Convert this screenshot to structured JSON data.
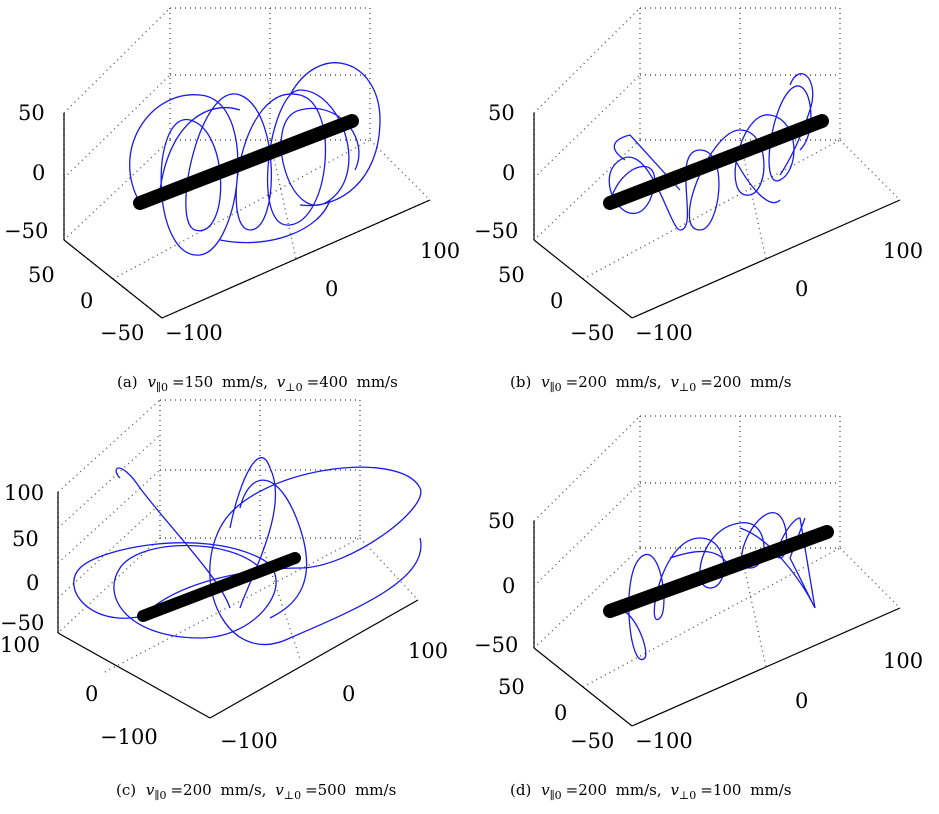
{
  "figure": {
    "panels": [
      {
        "id": "a",
        "caption": {
          "label": "(a)",
          "v_par": "150",
          "v_perp": "400"
        }
      },
      {
        "id": "b",
        "caption": {
          "label": "(b)",
          "v_par": "200",
          "v_perp": "200"
        }
      },
      {
        "id": "c",
        "caption": {
          "label": "(c)",
          "v_par": "200",
          "v_perp": "500"
        }
      },
      {
        "id": "d",
        "caption": {
          "label": "(d)",
          "v_par": "200",
          "v_perp": "100"
        }
      }
    ],
    "caption_symbol": "v",
    "par_sub": "∥0",
    "perp_sub": "⊥0",
    "unit": "mm/s",
    "colors": {
      "trajectory": "#1a1aee",
      "chain": "#000000",
      "grid": "#555555"
    }
  },
  "chart_data": [
    {
      "type": "3d-line",
      "panel": "a",
      "z_ticks": [
        "50",
        "0",
        "−50"
      ],
      "y_ticks": [
        "50",
        "0",
        "−50"
      ],
      "x_ticks": [
        "−100",
        "0",
        "100"
      ],
      "grid": true,
      "series": [
        {
          "kind": "trajectory",
          "color": "#1a1aee",
          "path": [
            [
              -115,
              0,
              -1
            ],
            [
              -95,
              22,
              30
            ],
            [
              -70,
              -18,
              -35
            ],
            [
              -45,
              35,
              48
            ],
            [
              -20,
              -30,
              -45
            ],
            [
              5,
              38,
              50
            ],
            [
              30,
              -35,
              -42
            ],
            [
              55,
              30,
              45
            ],
            [
              80,
              -25,
              -30
            ],
            [
              100,
              20,
              25
            ],
            [
              115,
              -10,
              -12
            ],
            [
              95,
              28,
              40
            ],
            [
              60,
              -32,
              -45
            ],
            [
              25,
              35,
              48
            ],
            [
              -10,
              -34,
              -40
            ],
            [
              -45,
              30,
              38
            ],
            [
              -80,
              -20,
              -25
            ],
            [
              -110,
              5,
              5
            ]
          ]
        },
        {
          "kind": "chain",
          "color": "#000000",
          "path": [
            [
              -130,
              0,
              0
            ],
            [
              130,
              0,
              0
            ]
          ]
        }
      ]
    },
    {
      "type": "3d-line",
      "panel": "b",
      "z_ticks": [
        "50",
        "0",
        "−50"
      ],
      "y_ticks": [
        "50",
        "0",
        "−50"
      ],
      "x_ticks": [
        "−100",
        "0",
        "100"
      ],
      "grid": true,
      "series": [
        {
          "kind": "trajectory",
          "color": "#1a1aee",
          "path": [
            [
              -115,
              0,
              -1
            ],
            [
              -100,
              15,
              20
            ],
            [
              -85,
              -12,
              -18
            ],
            [
              -70,
              20,
              22
            ],
            [
              -55,
              -18,
              -22
            ],
            [
              -40,
              22,
              25
            ],
            [
              -20,
              -22,
              -25
            ],
            [
              0,
              25,
              30
            ],
            [
              20,
              -24,
              -28
            ],
            [
              40,
              28,
              32
            ],
            [
              60,
              -26,
              -30
            ],
            [
              80,
              30,
              38
            ],
            [
              100,
              -20,
              -24
            ],
            [
              115,
              15,
              28
            ],
            [
              90,
              -22,
              -20
            ],
            [
              60,
              24,
              26
            ],
            [
              30,
              -20,
              -22
            ],
            [
              0,
              22,
              24
            ],
            [
              -30,
              -18,
              -20
            ],
            [
              -60,
              16,
              18
            ],
            [
              -90,
              -10,
              -12
            ]
          ]
        },
        {
          "kind": "chain",
          "color": "#000000",
          "path": [
            [
              -130,
              0,
              0
            ],
            [
              130,
              0,
              0
            ]
          ]
        }
      ]
    },
    {
      "type": "3d-line",
      "panel": "c",
      "z_ticks": [
        "100",
        "50",
        "0",
        "−50"
      ],
      "y_ticks": [
        "100",
        "0",
        "−100"
      ],
      "x_ticks": [
        "−100",
        "0",
        "100"
      ],
      "grid": true,
      "series": [
        {
          "kind": "trajectory",
          "color": "#1a1aee",
          "path": [
            [
              -115,
              0,
              -1
            ],
            [
              -130,
              60,
              40
            ],
            [
              -80,
              -50,
              -60
            ],
            [
              -20,
              70,
              90
            ],
            [
              20,
              -60,
              -55
            ],
            [
              60,
              80,
              100
            ],
            [
              110,
              -40,
              -30
            ],
            [
              140,
              60,
              40
            ],
            [
              100,
              -70,
              -55
            ],
            [
              40,
              60,
              60
            ],
            [
              -10,
              -50,
              -45
            ],
            [
              -60,
              40,
              30
            ],
            [
              -100,
              -30,
              -20
            ],
            [
              -120,
              10,
              5
            ]
          ]
        },
        {
          "kind": "chain",
          "color": "#000000",
          "path": [
            [
              -120,
              0,
              0
            ],
            [
              120,
              0,
              0
            ]
          ]
        }
      ]
    },
    {
      "type": "3d-line",
      "panel": "d",
      "z_ticks": [
        "50",
        "0",
        "−50"
      ],
      "y_ticks": [
        "50",
        "0",
        "−50"
      ],
      "x_ticks": [
        "−100",
        "0",
        "100"
      ],
      "grid": true,
      "series": [
        {
          "kind": "trajectory",
          "color": "#1a1aee",
          "path": [
            [
              -115,
              0,
              -1
            ],
            [
              -95,
              10,
              -30
            ],
            [
              -75,
              -8,
              25
            ],
            [
              -55,
              12,
              -28
            ],
            [
              -35,
              -10,
              22
            ],
            [
              -15,
              14,
              -26
            ],
            [
              5,
              -12,
              24
            ],
            [
              25,
              15,
              -24
            ],
            [
              45,
              -12,
              26
            ],
            [
              65,
              14,
              -22
            ],
            [
              85,
              -10,
              30
            ],
            [
              100,
              12,
              -30
            ],
            [
              110,
              -5,
              20
            ],
            [
              95,
              8,
              -18
            ],
            [
              75,
              -6,
              15
            ],
            [
              55,
              8,
              -15
            ]
          ]
        },
        {
          "kind": "chain",
          "color": "#000000",
          "path": [
            [
              -130,
              0,
              0
            ],
            [
              130,
              0,
              0
            ]
          ]
        }
      ]
    }
  ]
}
